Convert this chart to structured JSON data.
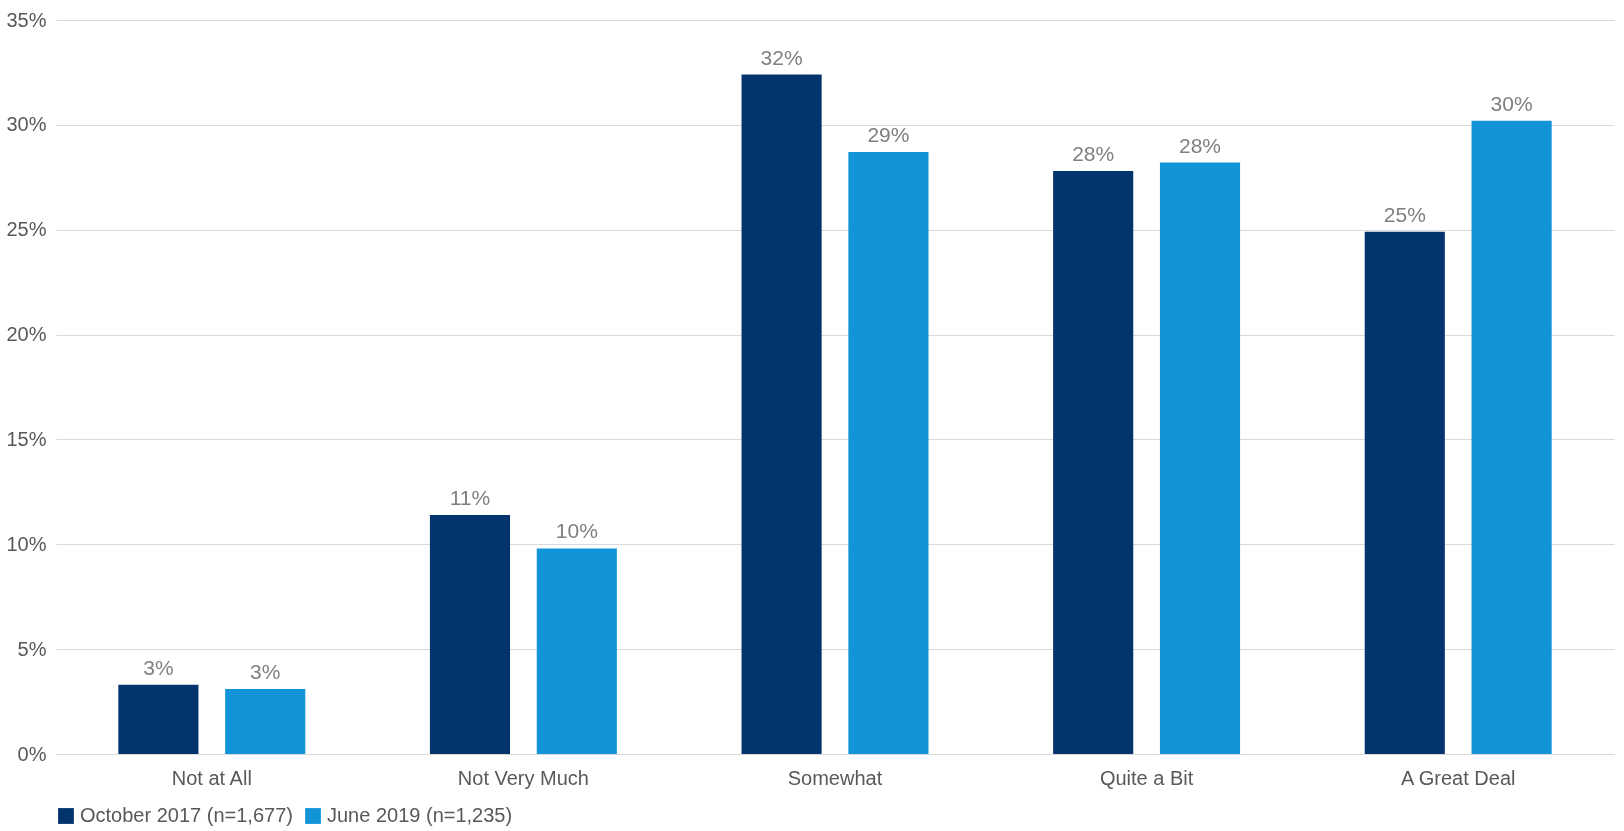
{
  "chart_data": {
    "type": "bar",
    "categories": [
      "Not at All",
      "Not Very Much",
      "Somewhat",
      "Quite a Bit",
      "A Great Deal"
    ],
    "series": [
      {
        "name": "October 2017 (n=1,677)",
        "color": "#03346e",
        "values": [
          3.3,
          11.4,
          32.4,
          27.8,
          24.9
        ],
        "value_labels": [
          "3%",
          "11%",
          "32%",
          "28%",
          "25%"
        ]
      },
      {
        "name": "June 2019 (n=1,235)",
        "color": "#1295d8",
        "values": [
          3.1,
          9.8,
          28.7,
          28.2,
          30.2
        ],
        "value_labels": [
          "3%",
          "10%",
          "29%",
          "28%",
          "30%"
        ]
      }
    ],
    "ylim": [
      0,
      35
    ],
    "yticks": [
      {
        "value": 0,
        "label": "0%"
      },
      {
        "value": 5,
        "label": "5%"
      },
      {
        "value": 10,
        "label": "10%"
      },
      {
        "value": 15,
        "label": "15%"
      },
      {
        "value": 20,
        "label": "20%"
      },
      {
        "value": 25,
        "label": "25%"
      },
      {
        "value": 30,
        "label": "30%"
      },
      {
        "value": 35,
        "label": "35%"
      }
    ],
    "grid": "y",
    "legend": "bottom"
  }
}
